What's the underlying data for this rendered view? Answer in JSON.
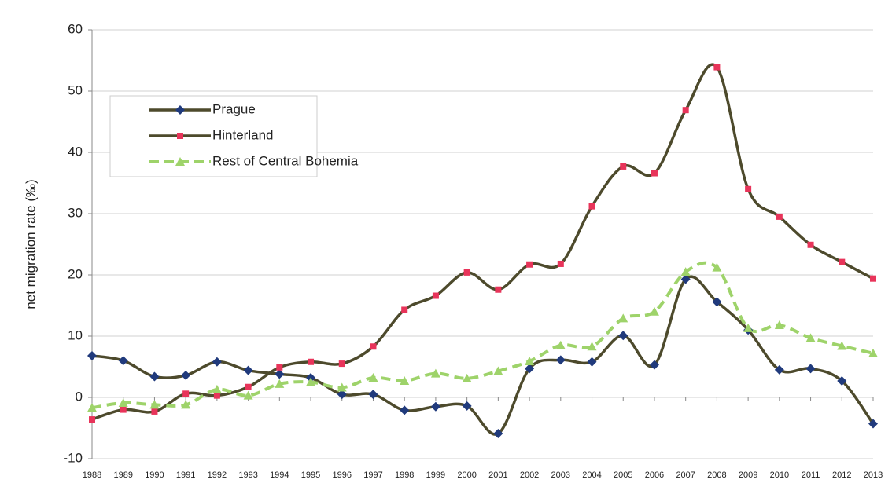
{
  "chart_data": {
    "type": "line",
    "y_label": "net migration rate (‰)",
    "categories": [
      "1988",
      "1989",
      "1990",
      "1991",
      "1992",
      "1993",
      "1994",
      "1995",
      "1996",
      "1997",
      "1998",
      "1999",
      "2000",
      "2001",
      "2002",
      "2003",
      "2004",
      "2005",
      "2006",
      "2007",
      "2008",
      "2009",
      "2010",
      "2011",
      "2012",
      "2013"
    ],
    "series": [
      {
        "name": "Prague",
        "color": "#4d4a2c",
        "marker_color": "#203a7c",
        "marker": "diamond",
        "dashed": false,
        "values": [
          6.8,
          6.0,
          3.4,
          3.6,
          5.8,
          4.4,
          3.8,
          3.2,
          0.5,
          0.5,
          -2.1,
          -1.5,
          -1.4,
          -5.9,
          4.7,
          6.1,
          5.8,
          10.1,
          5.3,
          19.3,
          15.6,
          11.0,
          4.5,
          4.7,
          2.7,
          -4.3
        ]
      },
      {
        "name": "Hinterland",
        "color": "#4d4a2c",
        "marker_color": "#e8345a",
        "marker": "square",
        "dashed": false,
        "values": [
          -3.6,
          -2.0,
          -2.3,
          0.6,
          0.3,
          1.7,
          4.9,
          5.8,
          5.5,
          8.3,
          14.3,
          16.6,
          20.4,
          17.6,
          21.7,
          21.8,
          31.2,
          37.7,
          36.6,
          46.9,
          53.9,
          34.0,
          29.5,
          24.9,
          22.1,
          19.4
        ]
      },
      {
        "name": "Rest of Central Bohemia",
        "color": "#9ed36a",
        "marker_color": "#9ed36a",
        "marker": "triangle",
        "dashed": true,
        "values": [
          -1.7,
          -0.9,
          -1.2,
          -1.2,
          1.3,
          0.3,
          2.2,
          2.5,
          1.6,
          3.2,
          2.7,
          3.9,
          3.1,
          4.3,
          5.9,
          8.5,
          8.3,
          12.9,
          14.0,
          20.5,
          21.2,
          11.3,
          11.8,
          9.7,
          8.4,
          7.2
        ]
      }
    ],
    "ylim": [
      -10,
      60
    ],
    "yticks": [
      -10,
      0,
      10,
      20,
      30,
      40,
      50,
      60
    ],
    "grid": true,
    "legend": "upper left"
  }
}
